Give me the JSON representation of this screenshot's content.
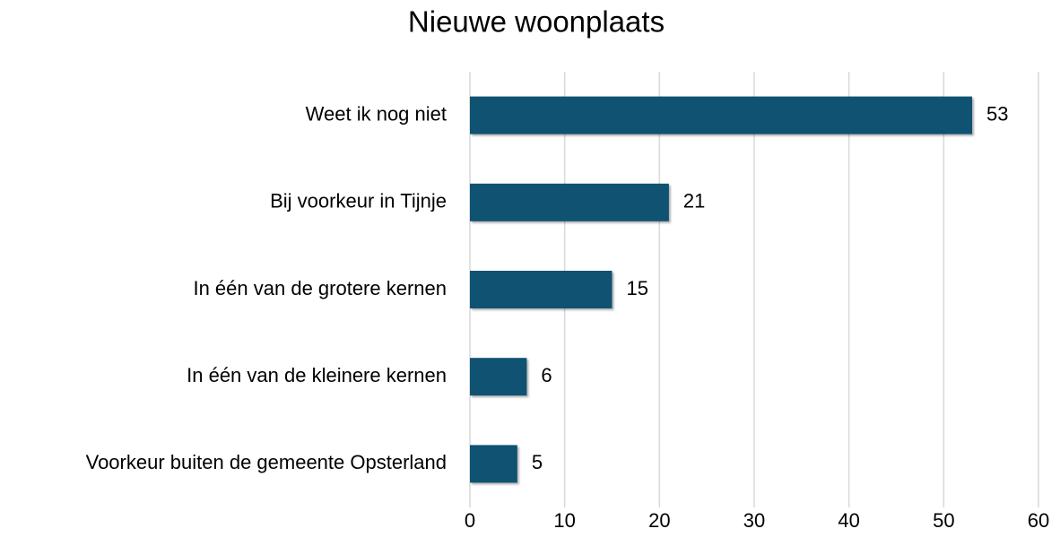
{
  "chart_data": {
    "type": "barh",
    "title": "Nieuwe woonplaats",
    "categories": [
      "Weet ik nog niet",
      "Bij voorkeur in Tijnje",
      "In één van de grotere kernen",
      "In één van de kleinere kernen",
      "Voorkeur buiten de gemeente Opsterland"
    ],
    "values": [
      53,
      21,
      15,
      6,
      5
    ],
    "color": "#0f5272",
    "xlim": [
      0,
      60
    ],
    "xticks": [
      0,
      10,
      20,
      30,
      40,
      50,
      60
    ],
    "grid": true
  }
}
